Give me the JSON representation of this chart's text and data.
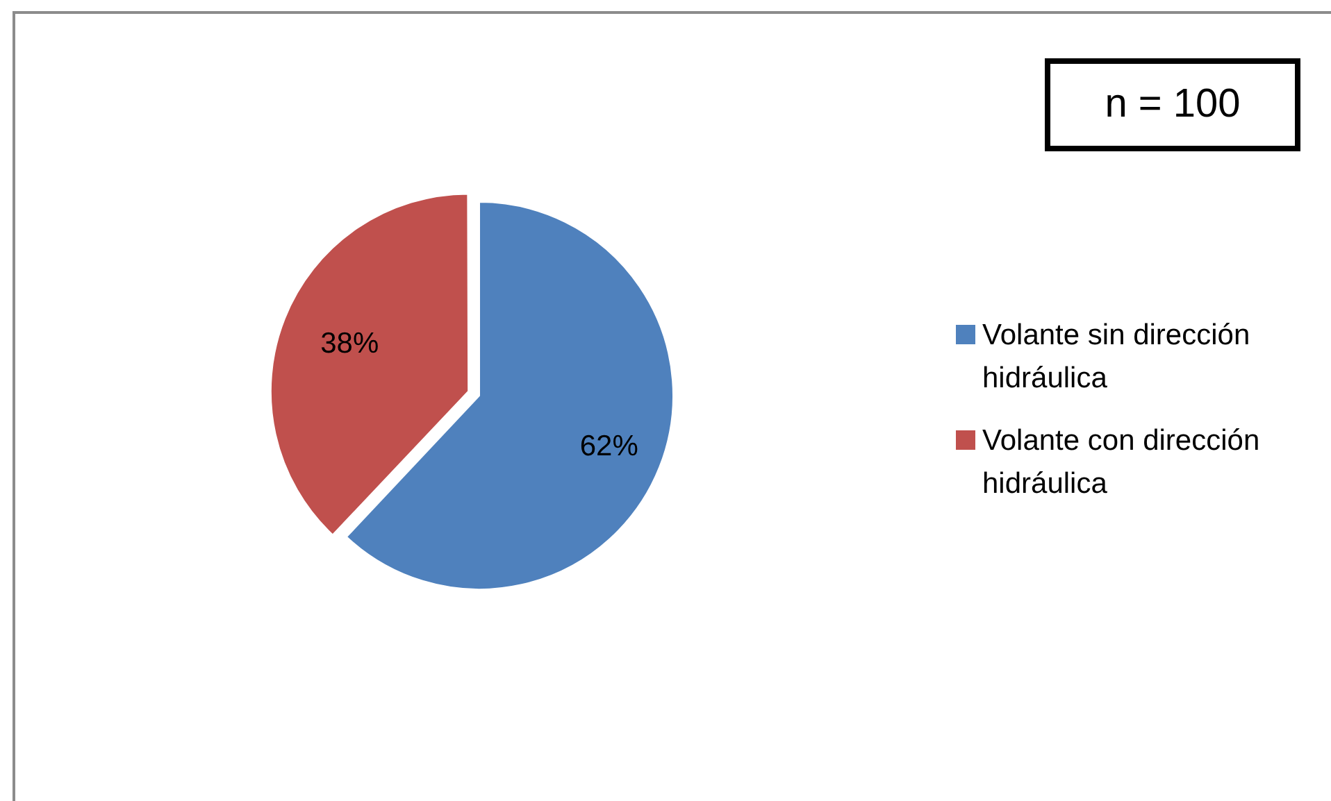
{
  "chart_data": {
    "type": "pie",
    "categories": [
      "Volante sin dirección hidráulica",
      "Volante con dirección hidráulica"
    ],
    "values": [
      62,
      38
    ],
    "colors": [
      "#4f81bd",
      "#c0504d"
    ],
    "value_labels": [
      "62%",
      "38%"
    ],
    "legend": "right",
    "annotations": [
      "n = 100"
    ]
  }
}
